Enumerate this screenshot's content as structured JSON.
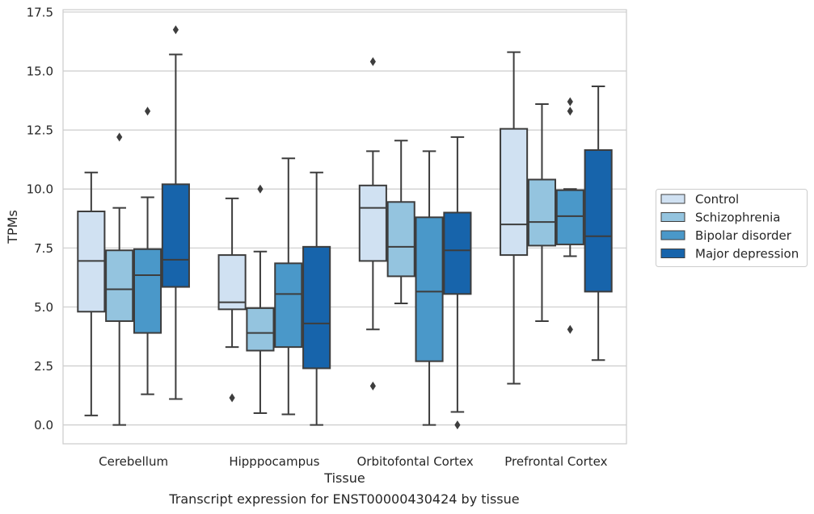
{
  "chart_data": {
    "type": "box",
    "xlabel": "Tissue",
    "ylabel": "TPMs",
    "caption": "Transcript expression for ENST00000430424 by tissue",
    "ylim": [
      -0.8,
      17.6
    ],
    "yticks": [
      0.0,
      2.5,
      5.0,
      7.5,
      10.0,
      12.5,
      15.0,
      17.5
    ],
    "ytick_labels": [
      "0.0",
      "2.5",
      "5.0",
      "7.5",
      "10.0",
      "12.5",
      "15.0",
      "17.5"
    ],
    "grid": "horizontal",
    "legend_position": "right",
    "categories": [
      "Cerebellum",
      "Hipppocampus",
      "Orbitofontal Cortex",
      "Prefrontal Cortex"
    ],
    "series": [
      {
        "name": "Control",
        "color": "#d0e1f2",
        "boxes": [
          {
            "whislo": 0.4,
            "q1": 4.8,
            "med": 6.95,
            "q3": 9.05,
            "whishi": 10.7,
            "fliers": []
          },
          {
            "whislo": 3.3,
            "q1": 4.9,
            "med": 5.2,
            "q3": 7.2,
            "whishi": 9.6,
            "fliers": [
              1.15
            ]
          },
          {
            "whislo": 4.05,
            "q1": 6.95,
            "med": 9.2,
            "q3": 10.15,
            "whishi": 11.6,
            "fliers": [
              15.4,
              1.65
            ]
          },
          {
            "whislo": 1.75,
            "q1": 7.2,
            "med": 8.5,
            "q3": 12.55,
            "whishi": 15.8,
            "fliers": []
          }
        ]
      },
      {
        "name": "Schizophrenia",
        "color": "#94c4df",
        "boxes": [
          {
            "whislo": 0.0,
            "q1": 4.4,
            "med": 5.75,
            "q3": 7.4,
            "whishi": 9.2,
            "fliers": [
              12.2
            ]
          },
          {
            "whislo": 0.5,
            "q1": 3.15,
            "med": 3.9,
            "q3": 4.95,
            "whishi": 7.35,
            "fliers": [
              10.0
            ]
          },
          {
            "whislo": 5.15,
            "q1": 6.3,
            "med": 7.55,
            "q3": 9.45,
            "whishi": 12.05,
            "fliers": []
          },
          {
            "whislo": 4.4,
            "q1": 7.6,
            "med": 8.6,
            "q3": 10.4,
            "whishi": 13.6,
            "fliers": []
          }
        ]
      },
      {
        "name": "Bipolar disorder",
        "color": "#4a98c9",
        "boxes": [
          {
            "whislo": 1.3,
            "q1": 3.9,
            "med": 6.35,
            "q3": 7.45,
            "whishi": 9.65,
            "fliers": [
              13.3
            ]
          },
          {
            "whislo": 0.45,
            "q1": 3.3,
            "med": 5.55,
            "q3": 6.85,
            "whishi": 11.3,
            "fliers": []
          },
          {
            "whislo": 0.0,
            "q1": 2.7,
            "med": 5.65,
            "q3": 8.8,
            "whishi": 11.6,
            "fliers": []
          },
          {
            "whislo": 7.15,
            "q1": 7.65,
            "med": 8.85,
            "q3": 9.95,
            "whishi": 10.0,
            "fliers": [
              13.7,
              13.3,
              4.05
            ]
          }
        ]
      },
      {
        "name": "Major depression",
        "color": "#1764ab",
        "boxes": [
          {
            "whislo": 1.1,
            "q1": 5.85,
            "med": 7.0,
            "q3": 10.2,
            "whishi": 15.7,
            "fliers": [
              16.75
            ]
          },
          {
            "whislo": 0.0,
            "q1": 2.4,
            "med": 4.3,
            "q3": 7.55,
            "whishi": 10.7,
            "fliers": []
          },
          {
            "whislo": 0.55,
            "q1": 5.55,
            "med": 7.4,
            "q3": 9.0,
            "whishi": 12.2,
            "fliers": [
              0.0
            ]
          },
          {
            "whislo": 2.75,
            "q1": 5.65,
            "med": 8.0,
            "q3": 11.65,
            "whishi": 14.35,
            "fliers": []
          }
        ]
      }
    ]
  }
}
